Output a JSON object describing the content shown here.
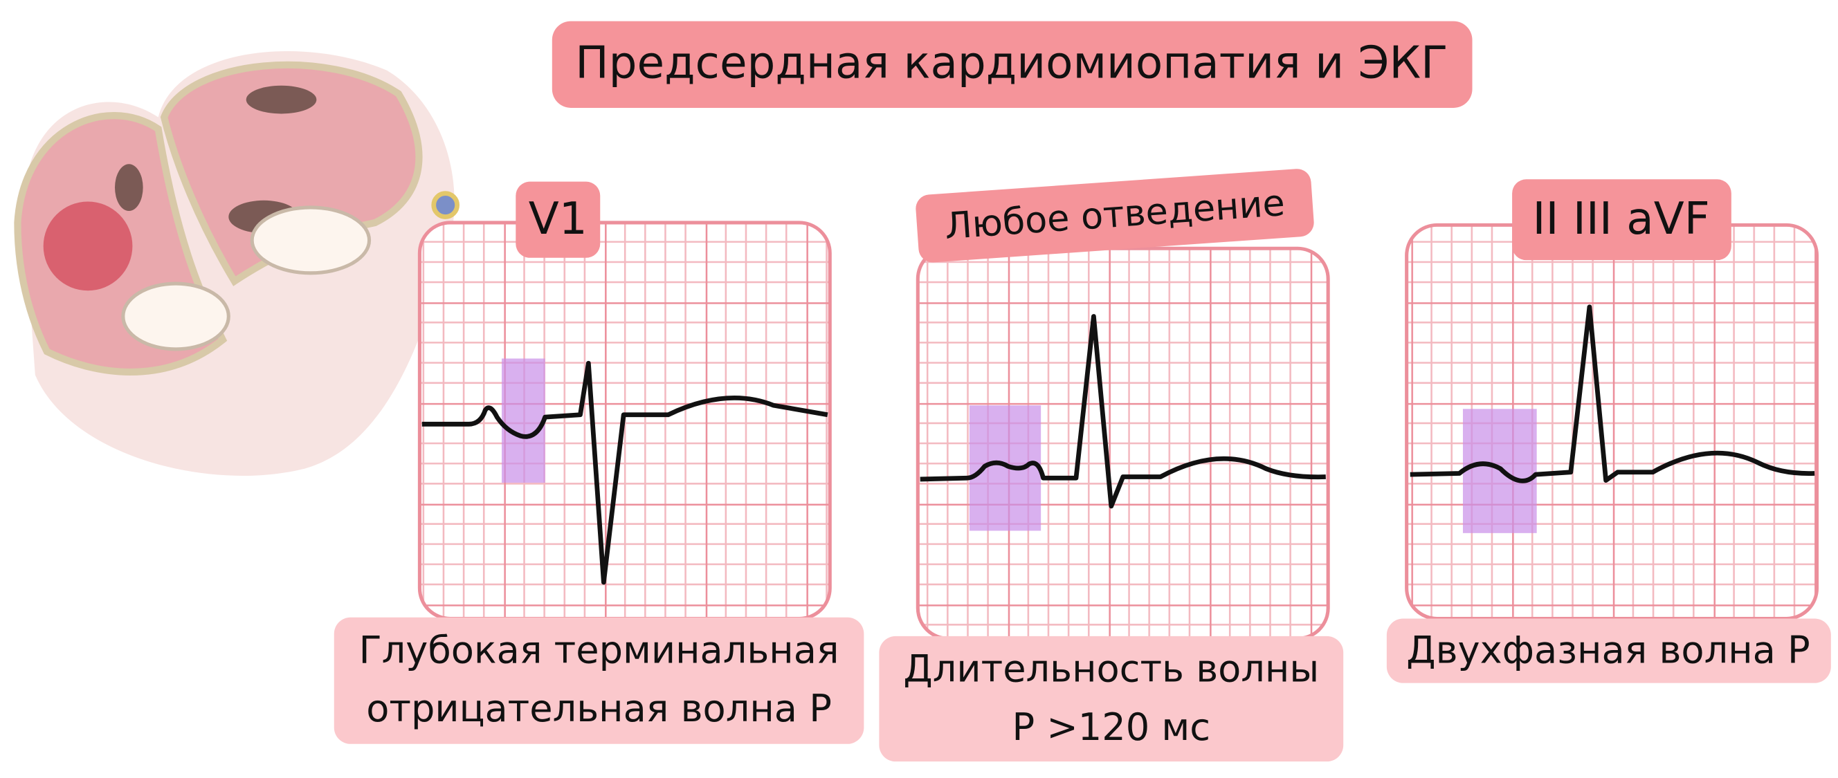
{
  "title": "Предсердная кардиомиопатия и ЭКГ",
  "panels": [
    {
      "lead": "V1",
      "caption": [
        "Глубокая терминальная",
        "отрицательная волна P"
      ]
    },
    {
      "lead": "Любое отведение",
      "caption": [
        "Длительность волны",
        "P >120 мс"
      ]
    },
    {
      "lead": "II III aVF",
      "caption": [
        "Двухфазная волна P"
      ]
    }
  ]
}
